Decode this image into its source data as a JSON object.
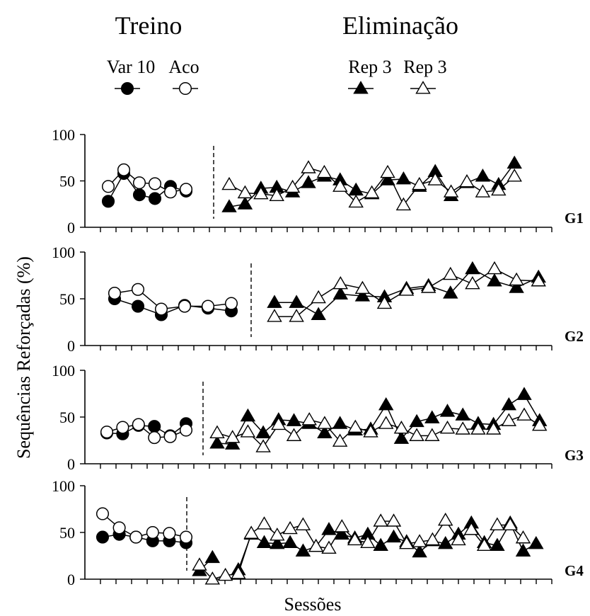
{
  "titles": {
    "training": "Treino",
    "elimination": "Eliminação"
  },
  "legend": [
    {
      "label": "Var 10",
      "marker": "circle",
      "fill": "black"
    },
    {
      "label": "Aco",
      "marker": "circle",
      "fill": "white"
    },
    {
      "label": "Rep 3",
      "marker": "triangle",
      "fill": "black"
    },
    {
      "label": "Rep 3",
      "marker": "triangle",
      "fill": "white"
    }
  ],
  "axes": {
    "ylabel": "Sequências Reforçadas (%)",
    "xlabel": "Sessões",
    "yticks": [
      "0",
      "50",
      "100"
    ]
  },
  "chart_data": [
    {
      "type": "line",
      "panel": "G1",
      "ylim": [
        0,
        100
      ],
      "training_sessions": 7,
      "elimination_sessions": 28,
      "series": [
        {
          "name": "Var 10",
          "phase": "training",
          "values": [
            28,
            58,
            35,
            31,
            44,
            39
          ]
        },
        {
          "name": "Aco",
          "phase": "training",
          "values": [
            44,
            62,
            48,
            47,
            38,
            41
          ]
        },
        {
          "name": "Rep 3",
          "phase": "elimination",
          "values": [
            22,
            25,
            42,
            43,
            38,
            48,
            55,
            51,
            40,
            36,
            51,
            52,
            44,
            60,
            34,
            48,
            55,
            46,
            69
          ]
        },
        {
          "name": "Rep 3",
          "phase": "elimination",
          "values": [
            46,
            37,
            36,
            34,
            43,
            64,
            59,
            44,
            27,
            37,
            59,
            24,
            46,
            51,
            38,
            49,
            38,
            40,
            55
          ]
        }
      ]
    },
    {
      "type": "line",
      "panel": "G2",
      "ylim": [
        0,
        100
      ],
      "training_sessions": 8,
      "elimination_sessions": 26,
      "series": [
        {
          "name": "Var 10",
          "phase": "training",
          "values": [
            50,
            42,
            33,
            43,
            40,
            37
          ]
        },
        {
          "name": "Aco",
          "phase": "training",
          "values": [
            56,
            60,
            39,
            42,
            42,
            45
          ]
        },
        {
          "name": "Rep 3",
          "phase": "elimination",
          "values": [
            46,
            46,
            33,
            55,
            53,
            52,
            61,
            64,
            56,
            82,
            69,
            62,
            73
          ]
        },
        {
          "name": "Rep 3",
          "phase": "elimination",
          "values": [
            31,
            31,
            51,
            66,
            61,
            45,
            59,
            62,
            76,
            66,
            82,
            70,
            69
          ]
        }
      ]
    },
    {
      "type": "line",
      "panel": "G3",
      "ylim": [
        0,
        100
      ],
      "training_sessions": 7,
      "elimination_sessions": 30,
      "series": [
        {
          "name": "Var 10",
          "phase": "training",
          "values": [
            33,
            32,
            41,
            40,
            30,
            43
          ]
        },
        {
          "name": "Aco",
          "phase": "training",
          "values": [
            34,
            39,
            42,
            28,
            29,
            36
          ]
        },
        {
          "name": "Rep 3",
          "phase": "elimination",
          "values": [
            22,
            21,
            51,
            33,
            47,
            46,
            43,
            33,
            43,
            36,
            37,
            63,
            27,
            45,
            49,
            56,
            52,
            43,
            42,
            63,
            74,
            46
          ]
        },
        {
          "name": "Rep 3",
          "phase": "elimination",
          "values": [
            33,
            28,
            34,
            18,
            42,
            30,
            47,
            43,
            24,
            39,
            34,
            43,
            38,
            30,
            30,
            38,
            37,
            37,
            37,
            46,
            52,
            41
          ]
        }
      ]
    },
    {
      "type": "line",
      "panel": "G4",
      "ylim": [
        0,
        100
      ],
      "training_sessions": 6,
      "elimination_sessions": 33,
      "series": [
        {
          "name": "Var 10",
          "phase": "training",
          "values": [
            45,
            48,
            45,
            41,
            41,
            39
          ]
        },
        {
          "name": "Aco",
          "phase": "training",
          "values": [
            70,
            55,
            45,
            50,
            49,
            45
          ]
        },
        {
          "name": "Rep 3",
          "phase": "elimination",
          "values": [
            9,
            23,
            null,
            10,
            48,
            39,
            38,
            39,
            30,
            35,
            53,
            48,
            44,
            48,
            36,
            45,
            40,
            29,
            41,
            38,
            48,
            60,
            39,
            36,
            60,
            30,
            38
          ]
        },
        {
          "name": "Rep 3",
          "phase": "elimination",
          "values": [
            15,
            0,
            4,
            6,
            49,
            59,
            47,
            54,
            58,
            35,
            33,
            56,
            42,
            39,
            62,
            62,
            38,
            40,
            42,
            63,
            42,
            53,
            36,
            58,
            58,
            44
          ]
        }
      ]
    }
  ]
}
